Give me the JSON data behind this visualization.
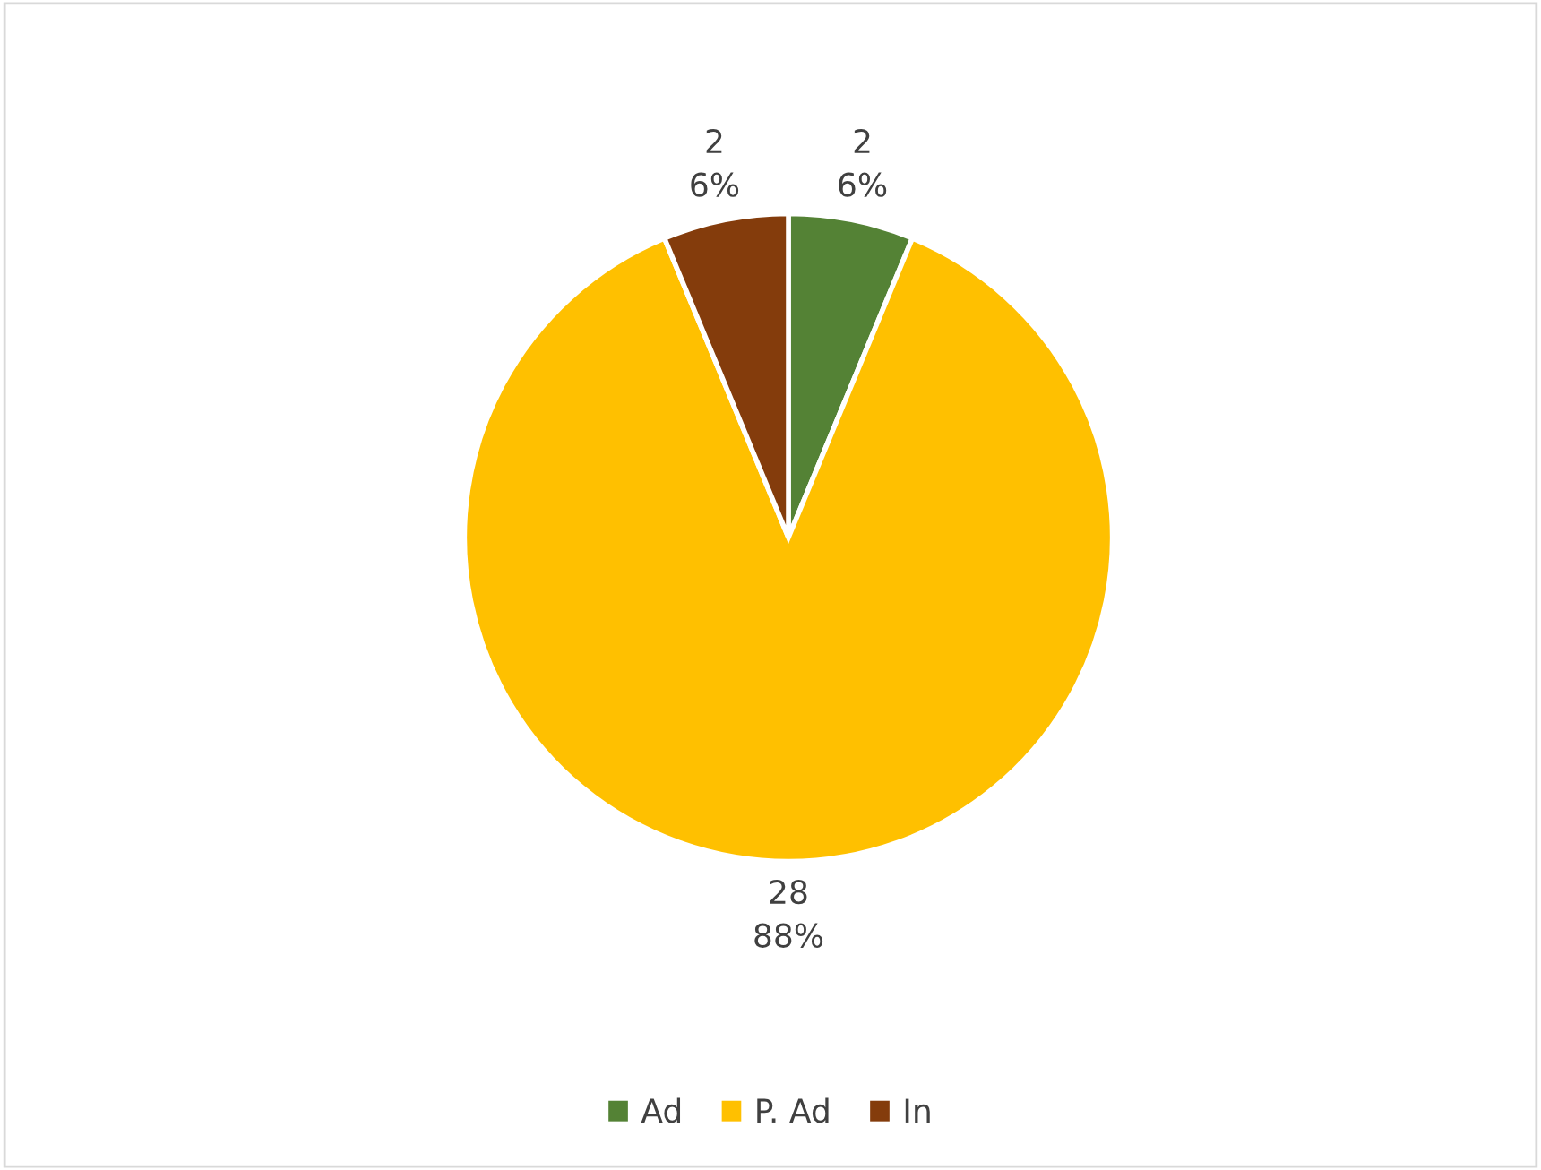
{
  "chart_data": {
    "type": "pie",
    "categories": [
      "Ad",
      "P. Ad",
      "In"
    ],
    "values": [
      2,
      28,
      2
    ],
    "colors": [
      "#548235",
      "#ffc000",
      "#843c0c"
    ],
    "value_labels": [
      "2\n6%",
      "28\n88%",
      "2\n6%"
    ],
    "legend": "bottom"
  }
}
